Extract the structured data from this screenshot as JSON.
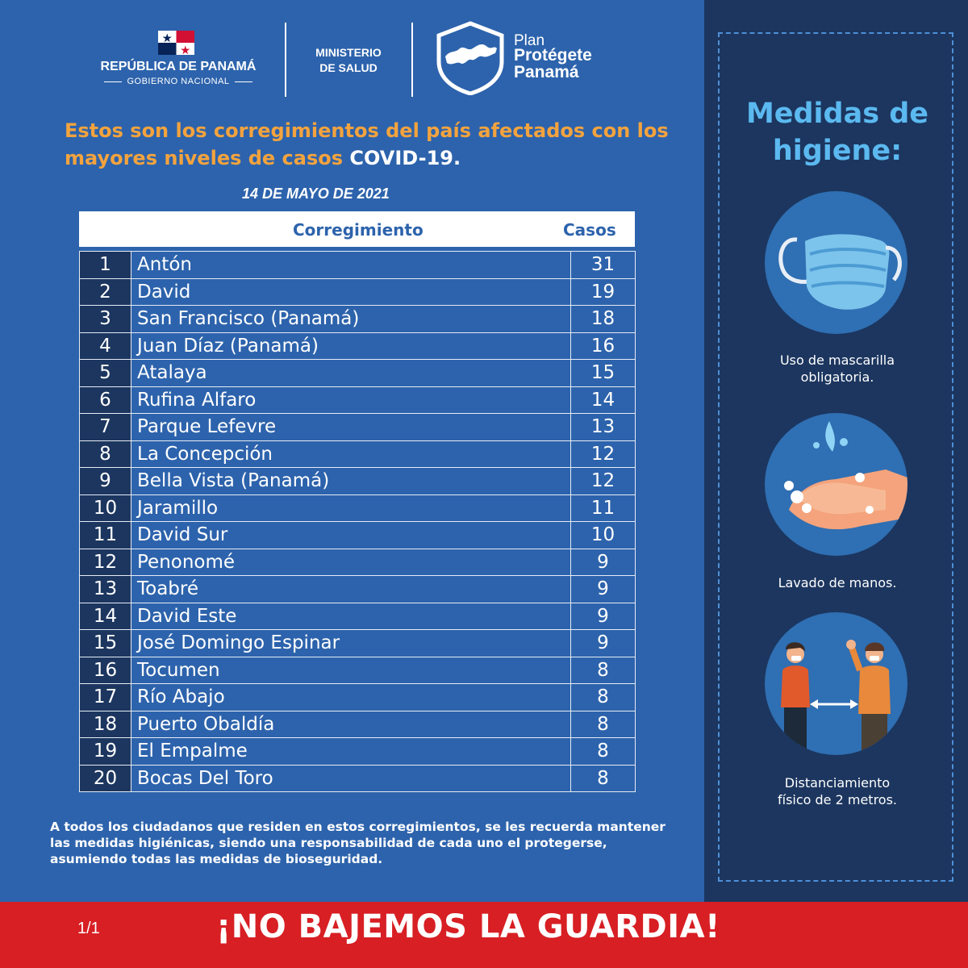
{
  "header": {
    "gov_title": "REPÚBLICA DE PANAMÁ",
    "gov_subtitle": "GOBIERNO NACIONAL",
    "ministry_line1": "MINISTERIO",
    "ministry_line2": "DE SALUD",
    "plan_line1": "Plan",
    "plan_line2": "Protégete",
    "plan_line3": "Panamá"
  },
  "headline": {
    "part1": "Estos son los corregimientos del país afectados con los mayores niveles de casos ",
    "highlight": "COVID-19."
  },
  "date": "14  DE MAYO DE 2021",
  "table": {
    "col_name": "Corregimiento",
    "col_cases": "Casos",
    "rows": [
      {
        "rank": "1",
        "name": "Antón",
        "cases": "31"
      },
      {
        "rank": "2",
        "name": "David",
        "cases": "19"
      },
      {
        "rank": "3",
        "name": "San Francisco (Panamá)",
        "cases": "18"
      },
      {
        "rank": "4",
        "name": "Juan Díaz (Panamá)",
        "cases": "16"
      },
      {
        "rank": "5",
        "name": "Atalaya",
        "cases": "15"
      },
      {
        "rank": "6",
        "name": "Rufina Alfaro",
        "cases": "14"
      },
      {
        "rank": "7",
        "name": "Parque Lefevre",
        "cases": "13"
      },
      {
        "rank": "8",
        "name": "La Concepción",
        "cases": "12"
      },
      {
        "rank": "9",
        "name": "Bella Vista (Panamá)",
        "cases": "12"
      },
      {
        "rank": "10",
        "name": "Jaramillo",
        "cases": "11"
      },
      {
        "rank": "11",
        "name": "David Sur",
        "cases": "10"
      },
      {
        "rank": "12",
        "name": "Penonomé",
        "cases": "9"
      },
      {
        "rank": "13",
        "name": "Toabré",
        "cases": "9"
      },
      {
        "rank": "14",
        "name": "David Este",
        "cases": "9"
      },
      {
        "rank": "15",
        "name": "José Domingo Espinar",
        "cases": "9"
      },
      {
        "rank": "16",
        "name": "Tocumen",
        "cases": "8"
      },
      {
        "rank": "17",
        "name": "Río Abajo",
        "cases": "8"
      },
      {
        "rank": "18",
        "name": "Puerto Obaldía",
        "cases": "8"
      },
      {
        "rank": "19",
        "name": "El Empalme",
        "cases": "8"
      },
      {
        "rank": "20",
        "name": "Bocas Del Toro",
        "cases": "8"
      }
    ]
  },
  "note": "A todos los ciudadanos que residen en estos corregimientos, se les recuerda mantener las medidas higiénicas, siendo una responsabilidad de cada uno el protegerse, asumiendo todas  las medidas de bioseguridad.",
  "sidebar": {
    "title_line1": "Medidas de",
    "title_line2": "higiene:",
    "items": [
      {
        "icon": "face-mask-icon",
        "line1": "Uso de mascarilla",
        "line2": "obligatoria."
      },
      {
        "icon": "hand-washing-icon",
        "line1": "Lavado de manos.",
        "line2": ""
      },
      {
        "icon": "social-distancing-icon",
        "line1": "Distanciamiento",
        "line2": "físico de 2 metros."
      }
    ]
  },
  "footer": {
    "page": "1/1",
    "slogan": "¡NO BAJEMOS LA GUARDIA!"
  },
  "colors": {
    "main_bg": "#2d63ac",
    "side_bg": "#1c365f",
    "accent_orange": "#f3a33e",
    "accent_light_blue": "#5bb9f0",
    "footer_red": "#d71f24"
  }
}
